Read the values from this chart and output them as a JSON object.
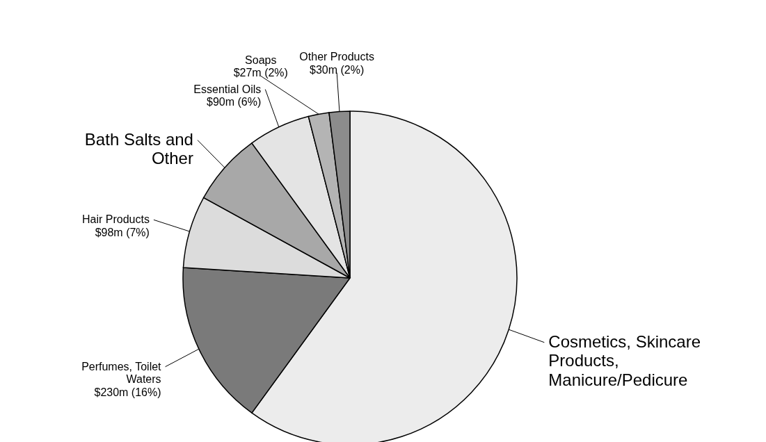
{
  "chart_data": {
    "type": "pie",
    "categories": [
      "Cosmetics, Skincare Products, Manicure/Pedicure",
      "Perfumes, Toilet Waters",
      "Hair Products",
      "Bath Salts and Other",
      "Essential Oils",
      "Soaps",
      "Other Products"
    ],
    "values": [
      60,
      16,
      7,
      7,
      6,
      2,
      2
    ],
    "colors": [
      "#ececec",
      "#7a7a7a",
      "#dcdcdc",
      "#a8a8a8",
      "#e4e4e4",
      "#b4b4b4",
      "#8c8c8c"
    ],
    "value_labels": [
      null,
      "$230m (16%)",
      "$98m (7%)",
      null,
      "$90m (6%)",
      "$27m (2%)",
      "$30m (2%)"
    ]
  }
}
